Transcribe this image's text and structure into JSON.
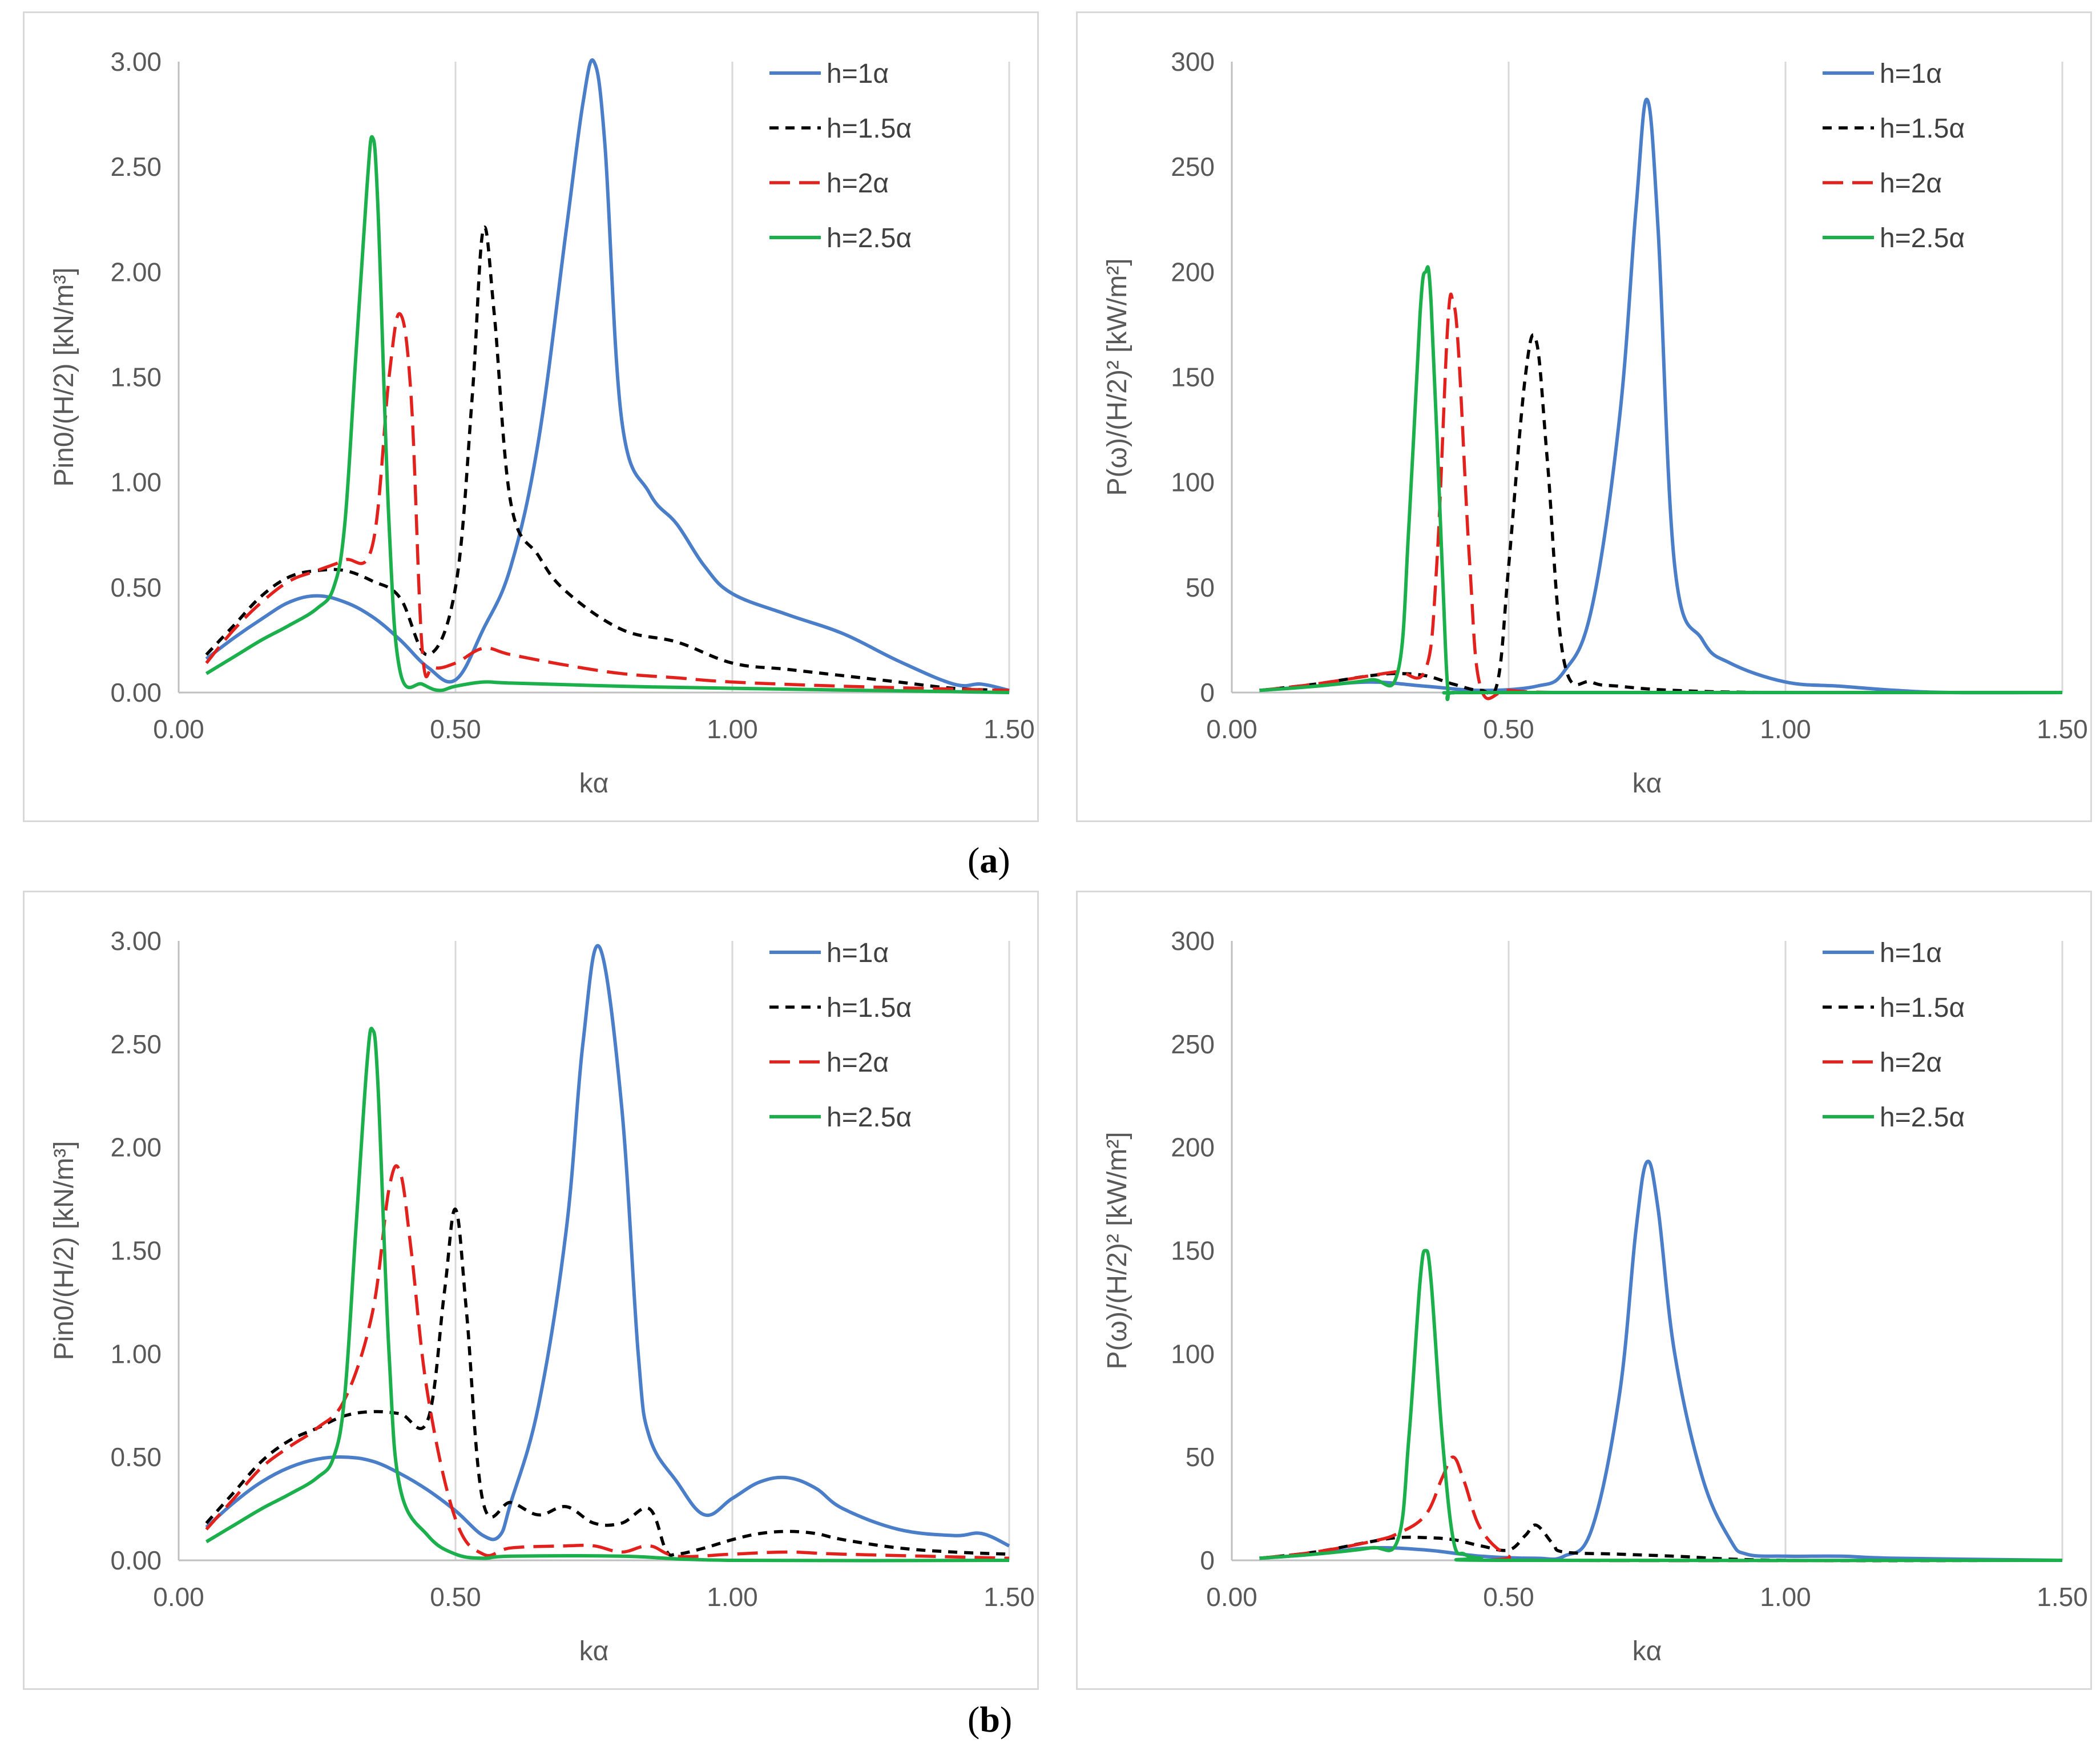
{
  "figure": {
    "label_a_open": "(",
    "label_a_letter": "a",
    "label_a_close": ")",
    "label_b_open": "(",
    "label_b_letter": "b",
    "label_b_close": ")"
  },
  "colors": {
    "h1": "#4a7ec9",
    "h15": "#000000",
    "h2": "#e3211c",
    "h25": "#1cb04c"
  },
  "chart_data": [
    {
      "id": "a-left",
      "type": "line",
      "xlabel": "kα",
      "ylabel": "Pin0/(H/2)  [kN/m³]",
      "xlim": [
        0,
        1.5
      ],
      "ylim": [
        0,
        3
      ],
      "xticks": [
        "0.00",
        "0.50",
        "1.00",
        "1.50"
      ],
      "yticks": [
        "0.00",
        "0.50",
        "1.00",
        "1.50",
        "2.00",
        "2.50",
        "3.00"
      ],
      "legend": "top-right",
      "series": [
        {
          "name": "h=1α",
          "style": "solid",
          "color": "#4a7ec9",
          "x": [
            0.05,
            0.1,
            0.15,
            0.2,
            0.25,
            0.3,
            0.35,
            0.4,
            0.45,
            0.5,
            0.55,
            0.6,
            0.65,
            0.7,
            0.73,
            0.75,
            0.77,
            0.8,
            0.85,
            0.9,
            0.95,
            1.0,
            1.1,
            1.2,
            1.3,
            1.4,
            1.45,
            1.5
          ],
          "y": [
            0.16,
            0.26,
            0.35,
            0.43,
            0.46,
            0.43,
            0.36,
            0.25,
            0.12,
            0.06,
            0.3,
            0.6,
            1.2,
            2.2,
            2.8,
            3.05,
            2.6,
            1.3,
            0.95,
            0.8,
            0.6,
            0.47,
            0.37,
            0.28,
            0.15,
            0.04,
            0.04,
            0.01
          ]
        },
        {
          "name": "h=1.5α",
          "style": "dash",
          "color": "#000000",
          "x": [
            0.05,
            0.1,
            0.15,
            0.2,
            0.25,
            0.3,
            0.35,
            0.4,
            0.45,
            0.5,
            0.53,
            0.55,
            0.57,
            0.6,
            0.65,
            0.7,
            0.8,
            0.9,
            1.0,
            1.1,
            1.2,
            1.3,
            1.4,
            1.5
          ],
          "y": [
            0.18,
            0.32,
            0.46,
            0.55,
            0.58,
            0.58,
            0.53,
            0.45,
            0.18,
            0.5,
            1.4,
            2.2,
            1.8,
            0.9,
            0.65,
            0.48,
            0.3,
            0.24,
            0.14,
            0.11,
            0.08,
            0.05,
            0.02,
            0.01
          ]
        },
        {
          "name": "h=2α",
          "style": "longdash",
          "color": "#e3211c",
          "x": [
            0.05,
            0.1,
            0.15,
            0.2,
            0.25,
            0.3,
            0.35,
            0.38,
            0.4,
            0.42,
            0.44,
            0.46,
            0.5,
            0.55,
            0.6,
            0.7,
            0.8,
            0.9,
            1.0,
            1.2,
            1.5
          ],
          "y": [
            0.14,
            0.3,
            0.43,
            0.53,
            0.58,
            0.63,
            0.7,
            1.5,
            1.8,
            1.4,
            0.2,
            0.12,
            0.14,
            0.21,
            0.18,
            0.13,
            0.09,
            0.07,
            0.05,
            0.03,
            0.01
          ]
        },
        {
          "name": "h=2.5α",
          "style": "solid",
          "color": "#1cb04c",
          "x": [
            0.05,
            0.1,
            0.15,
            0.2,
            0.25,
            0.28,
            0.3,
            0.32,
            0.34,
            0.35,
            0.36,
            0.38,
            0.4,
            0.44,
            0.47,
            0.5,
            0.55,
            0.6,
            0.8,
            1.0,
            1.5
          ],
          "y": [
            0.09,
            0.17,
            0.25,
            0.32,
            0.4,
            0.5,
            0.8,
            1.6,
            2.4,
            2.64,
            2.3,
            0.8,
            0.1,
            0.04,
            0.01,
            0.03,
            0.05,
            0.045,
            0.03,
            0.02,
            0.0
          ]
        }
      ]
    },
    {
      "id": "a-right",
      "type": "line",
      "xlabel": "kα",
      "ylabel": "P(ω)/(H/2)²  [kW/m²]",
      "xlim": [
        0,
        1.5
      ],
      "ylim": [
        0,
        300
      ],
      "xticks": [
        "0.00",
        "0.50",
        "1.00",
        "1.50"
      ],
      "yticks": [
        "0",
        "50",
        "100",
        "150",
        "200",
        "250",
        "300"
      ],
      "legend": "top-right",
      "series": [
        {
          "name": "h=1α",
          "style": "solid",
          "color": "#4a7ec9",
          "x": [
            0.05,
            0.15,
            0.25,
            0.35,
            0.45,
            0.55,
            0.6,
            0.65,
            0.7,
            0.73,
            0.75,
            0.77,
            0.8,
            0.85,
            0.9,
            1.0,
            1.1,
            1.2,
            1.3,
            1.5
          ],
          "y": [
            1,
            3,
            5,
            3,
            1,
            3,
            10,
            40,
            130,
            230,
            282,
            220,
            60,
            25,
            14,
            5,
            3,
            1,
            0,
            0
          ]
        },
        {
          "name": "h=1.5α",
          "style": "dash",
          "color": "#000000",
          "x": [
            0.05,
            0.15,
            0.25,
            0.3,
            0.35,
            0.4,
            0.45,
            0.48,
            0.5,
            0.53,
            0.55,
            0.57,
            0.6,
            0.65,
            0.7,
            0.8,
            1.0,
            1.5
          ],
          "y": [
            1,
            4,
            8,
            9,
            8,
            4,
            1,
            5,
            60,
            150,
            167,
            110,
            15,
            5,
            3,
            1,
            0,
            0
          ]
        },
        {
          "name": "h=2α",
          "style": "longdash",
          "color": "#e3211c",
          "x": [
            0.05,
            0.15,
            0.25,
            0.3,
            0.35,
            0.37,
            0.39,
            0.4,
            0.41,
            0.43,
            0.45,
            0.5,
            0.6,
            1.0,
            1.5
          ],
          "y": [
            1,
            4,
            8,
            10,
            11,
            60,
            175,
            185,
            160,
            60,
            2,
            1,
            0,
            0,
            0
          ]
        },
        {
          "name": "h=2.5α",
          "style": "solid",
          "color": "#1cb04c",
          "x": [
            0.05,
            0.15,
            0.25,
            0.3,
            0.32,
            0.34,
            0.35,
            0.36,
            0.38,
            0.39,
            0.4,
            0.5,
            1.5
          ],
          "y": [
            1,
            3,
            6,
            10,
            80,
            180,
            200,
            185,
            60,
            2,
            0,
            0,
            0
          ]
        }
      ]
    },
    {
      "id": "b-left",
      "type": "line",
      "xlabel": "kα",
      "ylabel": "Pin0/(H/2)  [kN/m³]",
      "xlim": [
        0,
        1.5
      ],
      "ylim": [
        0,
        3
      ],
      "xticks": [
        "0.00",
        "0.50",
        "1.00",
        "1.50"
      ],
      "yticks": [
        "0.00",
        "0.50",
        "1.00",
        "1.50",
        "2.00",
        "2.50",
        "3.00"
      ],
      "legend": "top-right",
      "series": [
        {
          "name": "h=1α",
          "style": "solid",
          "color": "#4a7ec9",
          "x": [
            0.05,
            0.1,
            0.15,
            0.2,
            0.25,
            0.3,
            0.35,
            0.4,
            0.45,
            0.5,
            0.55,
            0.58,
            0.6,
            0.65,
            0.7,
            0.73,
            0.76,
            0.8,
            0.83,
            0.85,
            0.9,
            0.95,
            1.0,
            1.05,
            1.1,
            1.15,
            1.2,
            1.3,
            1.4,
            1.45,
            1.5
          ],
          "y": [
            0.16,
            0.28,
            0.38,
            0.45,
            0.49,
            0.5,
            0.48,
            0.42,
            0.34,
            0.24,
            0.12,
            0.12,
            0.28,
            0.75,
            1.6,
            2.5,
            2.97,
            2.2,
            1.0,
            0.6,
            0.38,
            0.22,
            0.3,
            0.38,
            0.4,
            0.35,
            0.25,
            0.15,
            0.12,
            0.13,
            0.07
          ]
        },
        {
          "name": "h=1.5α",
          "style": "dash",
          "color": "#000000",
          "x": [
            0.05,
            0.1,
            0.15,
            0.2,
            0.25,
            0.3,
            0.35,
            0.4,
            0.45,
            0.48,
            0.5,
            0.52,
            0.55,
            0.6,
            0.65,
            0.7,
            0.75,
            0.8,
            0.85,
            0.88,
            0.9,
            0.95,
            1.0,
            1.05,
            1.1,
            1.15,
            1.2,
            1.3,
            1.4,
            1.5
          ],
          "y": [
            0.18,
            0.33,
            0.48,
            0.58,
            0.64,
            0.7,
            0.72,
            0.71,
            0.68,
            1.3,
            1.7,
            1.2,
            0.28,
            0.28,
            0.22,
            0.26,
            0.18,
            0.18,
            0.25,
            0.05,
            0.03,
            0.06,
            0.1,
            0.13,
            0.14,
            0.13,
            0.1,
            0.06,
            0.04,
            0.03
          ]
        },
        {
          "name": "h=2α",
          "style": "longdash",
          "color": "#e3211c",
          "x": [
            0.05,
            0.1,
            0.15,
            0.2,
            0.25,
            0.3,
            0.35,
            0.38,
            0.4,
            0.42,
            0.45,
            0.5,
            0.55,
            0.6,
            0.7,
            0.75,
            0.8,
            0.85,
            0.9,
            1.0,
            1.1,
            1.2,
            1.5
          ],
          "y": [
            0.15,
            0.3,
            0.45,
            0.55,
            0.64,
            0.78,
            1.2,
            1.8,
            1.88,
            1.5,
            0.8,
            0.2,
            0.03,
            0.06,
            0.07,
            0.07,
            0.04,
            0.07,
            0.02,
            0.03,
            0.04,
            0.03,
            0.01
          ]
        },
        {
          "name": "h=2.5α",
          "style": "solid",
          "color": "#1cb04c",
          "x": [
            0.05,
            0.1,
            0.15,
            0.2,
            0.25,
            0.28,
            0.3,
            0.32,
            0.34,
            0.35,
            0.36,
            0.38,
            0.4,
            0.45,
            0.5,
            0.55,
            0.6,
            0.8,
            1.0,
            1.5
          ],
          "y": [
            0.09,
            0.17,
            0.25,
            0.32,
            0.4,
            0.5,
            0.8,
            1.6,
            2.4,
            2.57,
            2.3,
            1.0,
            0.35,
            0.12,
            0.03,
            0.01,
            0.02,
            0.02,
            0.0,
            0.0
          ]
        }
      ]
    },
    {
      "id": "b-right",
      "type": "line",
      "xlabel": "kα",
      "ylabel": "P(ω)/(H/2)²  [kW/m²]",
      "xlim": [
        0,
        1.5
      ],
      "ylim": [
        0,
        300
      ],
      "xticks": [
        "0.00",
        "0.50",
        "1.00",
        "1.50"
      ],
      "yticks": [
        "0",
        "50",
        "100",
        "150",
        "200",
        "250",
        "300"
      ],
      "legend": "top-right",
      "series": [
        {
          "name": "h=1α",
          "style": "solid",
          "color": "#4a7ec9",
          "x": [
            0.05,
            0.15,
            0.25,
            0.35,
            0.45,
            0.55,
            0.6,
            0.65,
            0.7,
            0.73,
            0.75,
            0.77,
            0.8,
            0.85,
            0.9,
            0.93,
            1.0,
            1.1,
            1.2,
            1.5
          ],
          "y": [
            1,
            3,
            6,
            5,
            2,
            1,
            2,
            15,
            80,
            160,
            193,
            170,
            100,
            40,
            10,
            3,
            2,
            2,
            1,
            0
          ]
        },
        {
          "name": "h=1.5α",
          "style": "dash",
          "color": "#000000",
          "x": [
            0.05,
            0.15,
            0.25,
            0.3,
            0.35,
            0.4,
            0.45,
            0.5,
            0.53,
            0.55,
            0.58,
            0.6,
            0.7,
            0.8,
            1.0,
            1.5
          ],
          "y": [
            1,
            4,
            9,
            11,
            11,
            10,
            7,
            5,
            12,
            17,
            8,
            4,
            3,
            2,
            0,
            0
          ]
        },
        {
          "name": "h=2α",
          "style": "longdash",
          "color": "#e3211c",
          "x": [
            0.05,
            0.15,
            0.25,
            0.3,
            0.35,
            0.38,
            0.4,
            0.42,
            0.45,
            0.5,
            0.55,
            1.5
          ],
          "y": [
            1,
            4,
            9,
            13,
            22,
            40,
            50,
            38,
            15,
            2,
            0,
            0
          ]
        },
        {
          "name": "h=2.5α",
          "style": "solid",
          "color": "#1cb04c",
          "x": [
            0.05,
            0.15,
            0.25,
            0.3,
            0.32,
            0.34,
            0.35,
            0.36,
            0.38,
            0.4,
            0.42,
            0.45,
            0.5,
            1.5
          ],
          "y": [
            1,
            3,
            6,
            10,
            60,
            135,
            150,
            135,
            60,
            10,
            3,
            1,
            0,
            0
          ]
        }
      ]
    }
  ]
}
